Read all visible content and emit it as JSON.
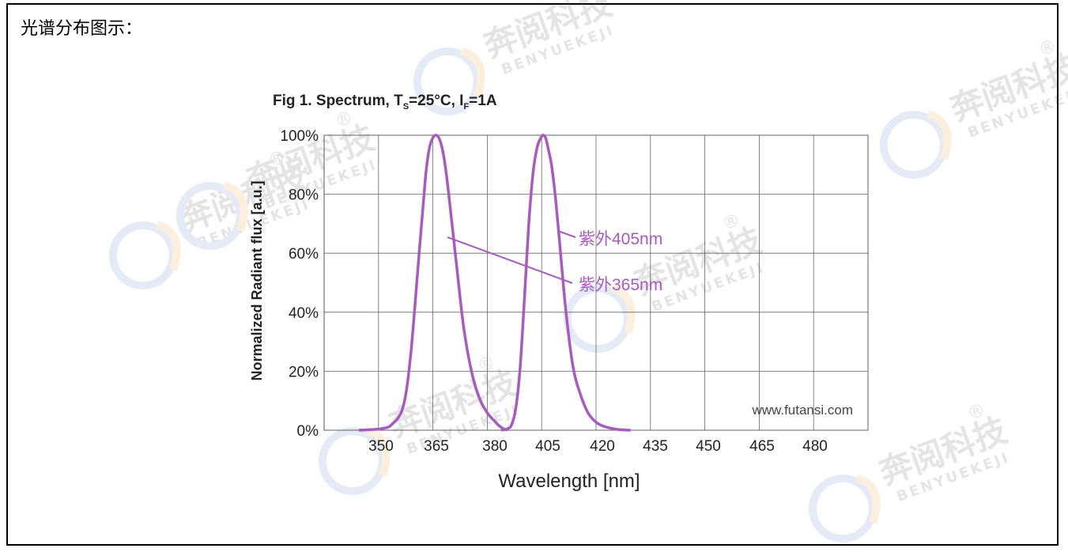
{
  "page": {
    "heading": "光谱分布图示：",
    "watermark": {
      "brand_cn": "奔阅科技",
      "brand_en": "BENYUEKEJI",
      "mark": "®"
    }
  },
  "chart_data": {
    "type": "line",
    "title": {
      "prefix": "Fig 1. Spectrum, T",
      "ts_sub": "S",
      "mid": "=25°C, I",
      "if_sub": "F",
      "suffix": "=1A"
    },
    "xlabel": "Wavelength [nm]",
    "ylabel": "Normalized Radiant flux [a.u.]",
    "xlim": [
      340,
      490
    ],
    "ylim": [
      0,
      100
    ],
    "x_ticks": [
      350,
      365,
      380,
      405,
      420,
      435,
      450,
      465,
      480
    ],
    "y_ticks": [
      "0%",
      "20%",
      "40%",
      "60%",
      "80%",
      "100%"
    ],
    "y_tick_values": [
      0,
      20,
      40,
      60,
      80,
      100
    ],
    "grid": true,
    "series": [
      {
        "name": "紫外365nm",
        "color": "#a85bbf",
        "x": [
          344,
          350,
          353,
          356,
          358,
          360,
          362,
          363,
          364,
          365,
          366,
          367,
          368,
          370,
          372,
          374,
          376,
          378,
          380,
          382,
          384,
          386
        ],
        "y": [
          0,
          0.5,
          2,
          8,
          25,
          55,
          85,
          95,
          99,
          100,
          98,
          92,
          82,
          58,
          35,
          20,
          11,
          6,
          3,
          1.5,
          0.5,
          0
        ]
      },
      {
        "name": "紫外405nm",
        "color": "#a85bbf",
        "x": [
          383,
          386,
          388,
          390,
          392,
          394,
          396,
          398,
          400,
          402,
          403,
          404,
          405,
          406,
          407,
          408,
          410,
          412,
          414,
          416,
          418,
          420,
          424,
          428
        ],
        "y": [
          0,
          0.5,
          2,
          8,
          22,
          45,
          70,
          87,
          96,
          99.5,
          100,
          99,
          96,
          90,
          80,
          67,
          40,
          21,
          12,
          6,
          3,
          1.5,
          0.3,
          0
        ]
      }
    ],
    "annotations": [
      {
        "text": "紫外405nm",
        "series": "紫外405nm"
      },
      {
        "text": "紫外365nm",
        "series": "紫外365nm"
      },
      {
        "text": "www.futansi.com"
      }
    ]
  }
}
